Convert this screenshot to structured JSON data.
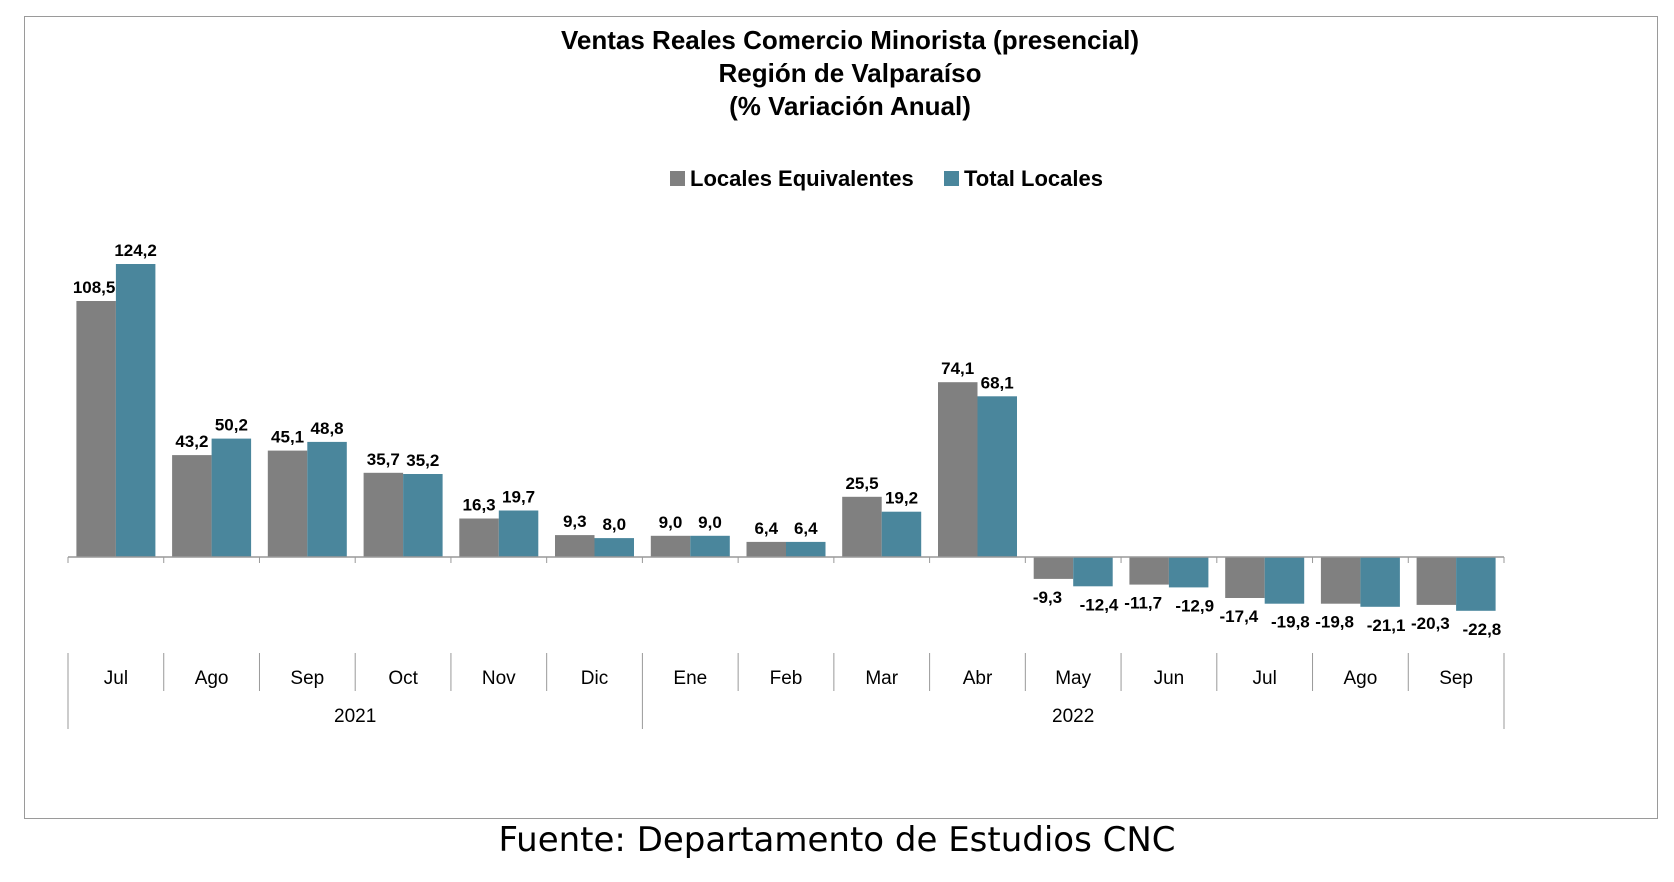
{
  "colors": {
    "locales_equivalentes": "#808080",
    "total_locales": "#4a869c",
    "axis": "#999999"
  },
  "chart_data": {
    "type": "bar",
    "title": "Ventas Reales Comercio Minorista (presencial)",
    "subtitle": "Región de Valparaíso",
    "subtitle2": "(% Variación Anual)",
    "categories": [
      "Jul",
      "Ago",
      "Sep",
      "Oct",
      "Nov",
      "Dic",
      "Ene",
      "Feb",
      "Mar",
      "Abr",
      "May",
      "Jun",
      "Jul",
      "Ago",
      "Sep"
    ],
    "years": [
      {
        "label": "2021",
        "start": 0,
        "end": 5
      },
      {
        "label": "2022",
        "start": 6,
        "end": 14
      }
    ],
    "series": [
      {
        "name": "Locales Equivalentes",
        "values": [
          108.5,
          43.2,
          45.1,
          35.7,
          16.3,
          9.3,
          9.0,
          6.4,
          25.5,
          74.1,
          -9.3,
          -11.7,
          -17.4,
          -19.8,
          -20.3
        ],
        "labels": [
          "108,5",
          "43,2",
          "45,1",
          "35,7",
          "16,3",
          "9,3",
          "9,0",
          "6,4",
          "25,5",
          "74,1",
          "-9,3",
          "-11,7",
          "-17,4",
          "-19,8",
          "-20,3"
        ]
      },
      {
        "name": "Total Locales",
        "values": [
          124.2,
          50.2,
          48.8,
          35.2,
          19.7,
          8.0,
          9.0,
          6.4,
          19.2,
          68.1,
          -12.4,
          -12.9,
          -19.8,
          -21.1,
          -22.8
        ],
        "labels": [
          "124,2",
          "50,2",
          "48,8",
          "35,2",
          "19,7",
          "8,0",
          "9,0",
          "6,4",
          "19,2",
          "68,1",
          "-12,4",
          "-12,9",
          "-19,8",
          "-21,1",
          "-22,8"
        ]
      }
    ],
    "legend_position": "top-center",
    "grid": false
  },
  "source_note": "Fuente: Departamento de Estudios CNC"
}
